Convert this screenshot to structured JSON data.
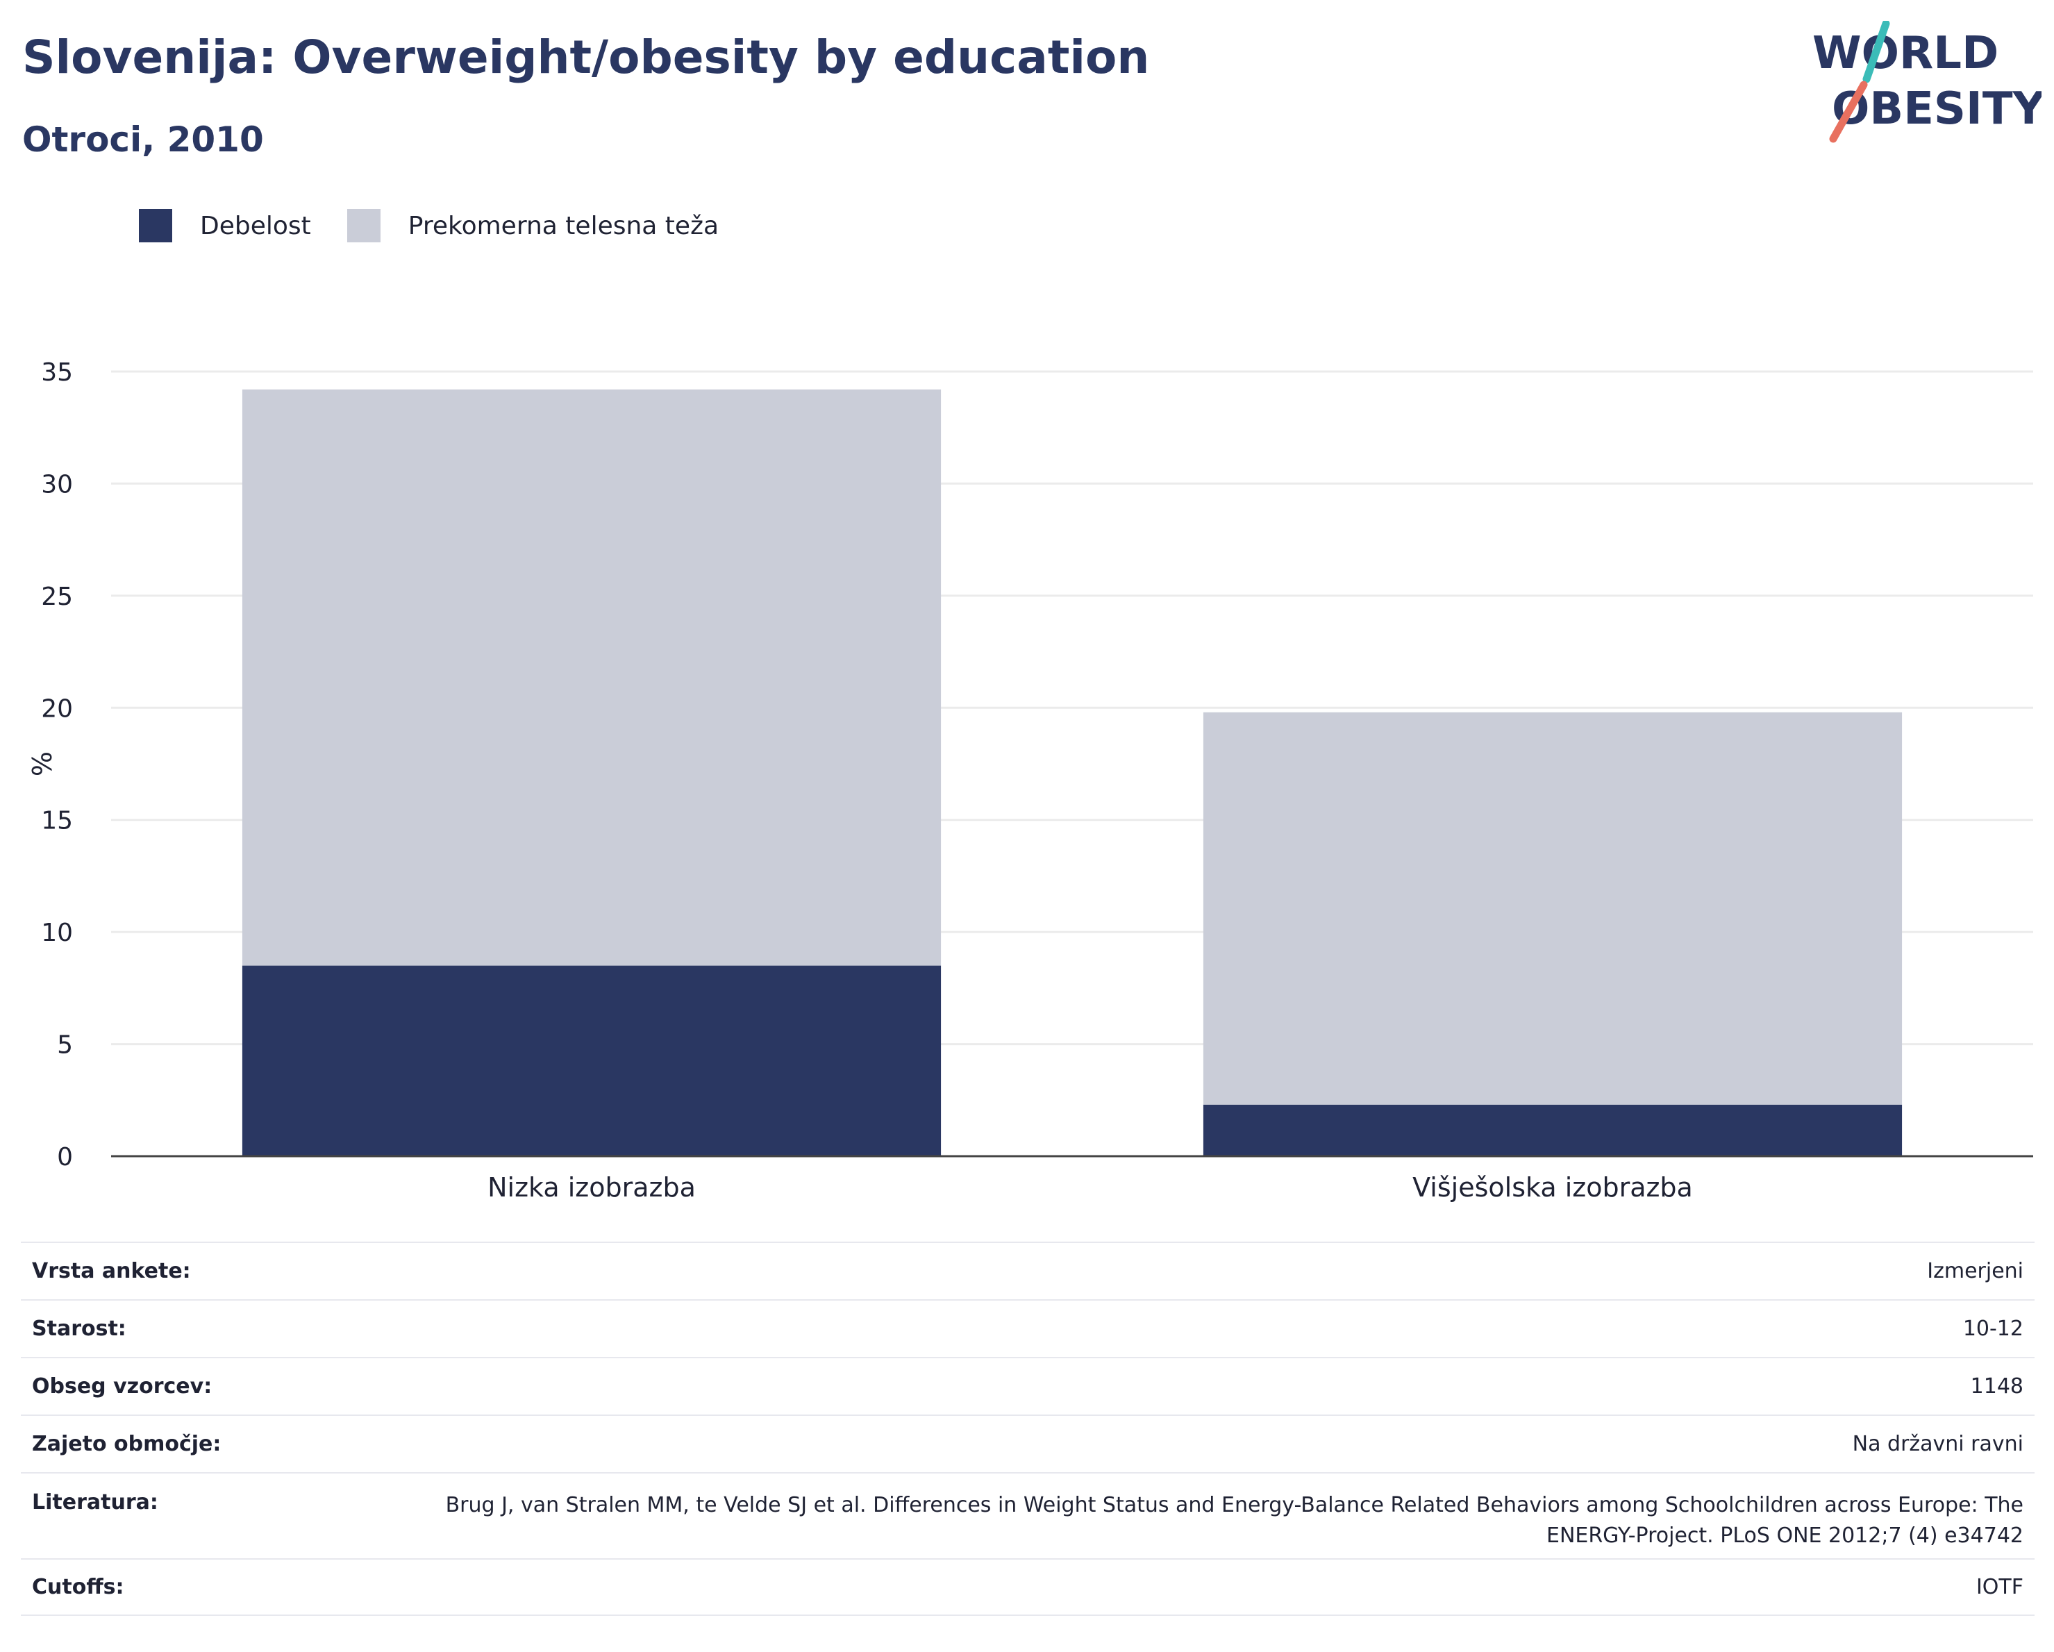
{
  "header": {
    "title": "Slovenija: Overweight/obesity by education",
    "subtitle": "Otroci, 2010"
  },
  "logo": {
    "line1": "WORLD",
    "line2": "OBESITY"
  },
  "colors": {
    "obesity": "#2a3762",
    "overweight": "#cacdd8",
    "logo_text": "#2a3762",
    "logo_teal": "#3bbcb8",
    "logo_coral": "#e8705f"
  },
  "chart_data": {
    "type": "bar",
    "stacked": true,
    "categories": [
      "Nizka izobrazba",
      "Višješolska izobrazba"
    ],
    "series": [
      {
        "name": "Debelost",
        "values": [
          8.5,
          2.3
        ]
      },
      {
        "name": "Prekomerna telesna teža",
        "values": [
          25.7,
          17.5
        ]
      }
    ],
    "ylabel": "%",
    "ylim": [
      0,
      35
    ],
    "yticks": [
      0,
      5,
      10,
      15,
      20,
      25,
      30,
      35
    ],
    "grid": true,
    "legend": "top-left"
  },
  "meta": [
    {
      "label": "Vrsta ankete:",
      "value": "Izmerjeni"
    },
    {
      "label": "Starost:",
      "value": "10-12"
    },
    {
      "label": "Obseg vzorcev:",
      "value": "1148"
    },
    {
      "label": "Zajeto območje:",
      "value": "Na državni ravni"
    },
    {
      "label": "Literatura:",
      "value": "Brug J, van Stralen MM, te Velde SJ et al. Differences in Weight Status and Energy-Balance Related Behaviors among Schoolchildren across Europe: The ENERGY-Project. PLoS ONE 2012;7 (4) e34742"
    },
    {
      "label": "Cutoffs:",
      "value": "IOTF"
    }
  ]
}
